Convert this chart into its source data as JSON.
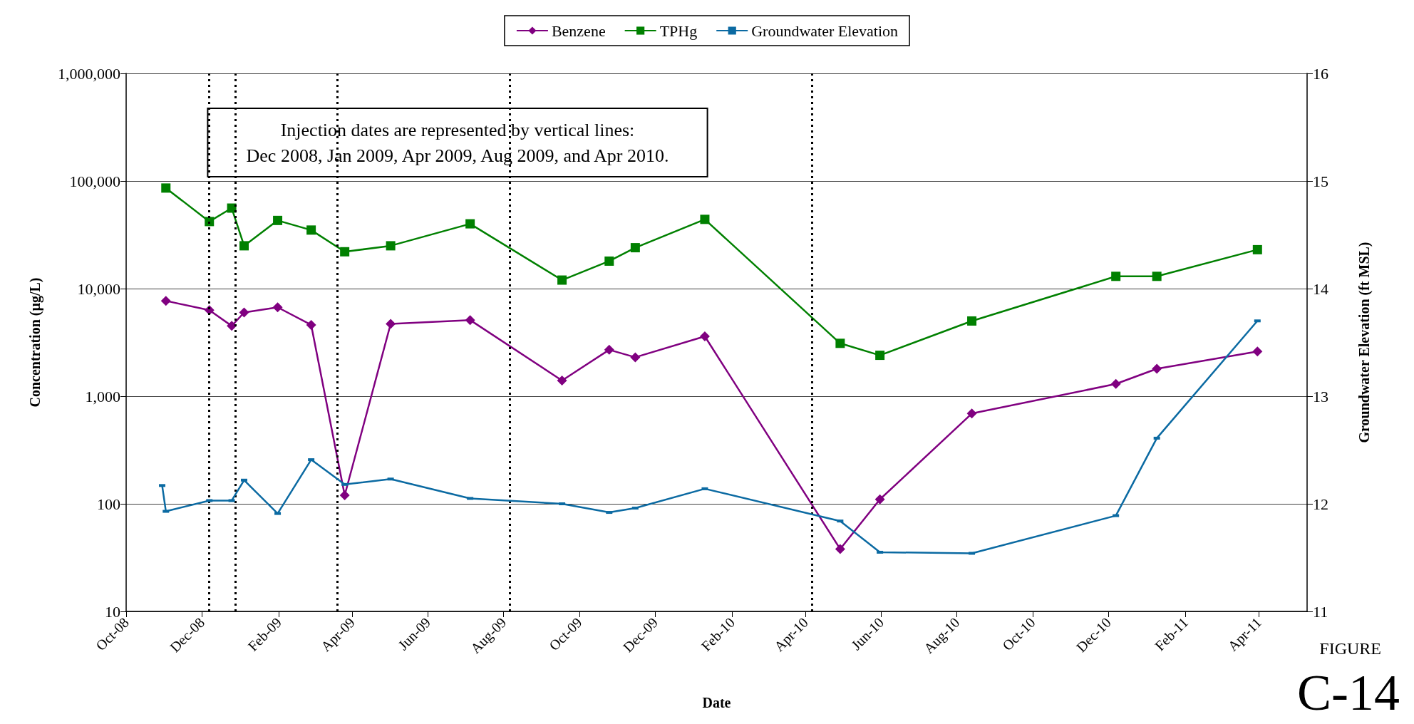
{
  "chart_data": {
    "type": "line",
    "xlabel": "Date",
    "ylabel": "Concentration (µg/L)",
    "y2label": "Groundwater Elevation (ft MSL)",
    "x": [
      "2008-11-02",
      "2008-12-07",
      "2008-12-25",
      "2009-01-04",
      "2009-01-31",
      "2009-02-27",
      "2009-03-26",
      "2009-05-02",
      "2009-07-05",
      "2009-09-17",
      "2009-10-25",
      "2009-11-15",
      "2010-01-10",
      "2010-04-29",
      "2010-05-31",
      "2010-08-13",
      "2010-12-07",
      "2011-01-09",
      "2011-03-31"
    ],
    "series": [
      {
        "name": "Benzene",
        "color": "#800080",
        "marker": "diamond",
        "values": [
          7700,
          6300,
          4500,
          6000,
          6700,
          4600,
          120,
          4700,
          5100,
          1400,
          2700,
          2300,
          3600,
          38,
          110,
          690,
          1300,
          1800,
          2600
        ]
      },
      {
        "name": "TPHg",
        "color": "#008000",
        "marker": "square",
        "values": [
          86000,
          42000,
          56000,
          25000,
          43000,
          35000,
          22000,
          25000,
          40000,
          12000,
          18000,
          24000,
          44000,
          3100,
          2400,
          5000,
          13000,
          13000,
          23000
        ]
      },
      {
        "name": "Groundwater Elevation",
        "color": "#0b6aa2",
        "marker": "square",
        "axis": "y2",
        "x": [
          "2008-10-30",
          "2008-11-02",
          "2008-12-07",
          "2008-12-25",
          "2009-01-04",
          "2009-01-31",
          "2009-02-27",
          "2009-03-26",
          "2009-05-02",
          "2009-07-05",
          "2009-09-17",
          "2009-10-25",
          "2009-11-15",
          "2010-01-10",
          "2010-04-29",
          "2010-05-31",
          "2010-08-13",
          "2010-12-07",
          "2011-01-09",
          "2011-03-31"
        ],
        "values": [
          12.17,
          11.93,
          12.03,
          12.03,
          12.22,
          11.91,
          12.41,
          12.18,
          12.23,
          12.05,
          12.0,
          11.92,
          11.96,
          12.14,
          11.84,
          11.55,
          11.54,
          11.89,
          12.61,
          13.7
        ]
      }
    ],
    "log": "y",
    "xlim": [
      "2008-10-01",
      "2011-05-10"
    ],
    "xticks": [
      {
        "value": "2008-10-01",
        "label": "Oct-08"
      },
      {
        "value": "2008-12-01",
        "label": "Dec-08"
      },
      {
        "value": "2009-02-01",
        "label": "Feb-09"
      },
      {
        "value": "2009-04-01",
        "label": "Apr-09"
      },
      {
        "value": "2009-06-01",
        "label": "Jun-09"
      },
      {
        "value": "2009-08-01",
        "label": "Aug-09"
      },
      {
        "value": "2009-10-01",
        "label": "Oct-09"
      },
      {
        "value": "2009-12-01",
        "label": "Dec-09"
      },
      {
        "value": "2010-02-01",
        "label": "Feb-10"
      },
      {
        "value": "2010-04-01",
        "label": "Apr-10"
      },
      {
        "value": "2010-06-01",
        "label": "Jun-10"
      },
      {
        "value": "2010-08-01",
        "label": "Aug-10"
      },
      {
        "value": "2010-10-01",
        "label": "Oct-10"
      },
      {
        "value": "2010-12-01",
        "label": "Dec-10"
      },
      {
        "value": "2011-02-01",
        "label": "Feb-11"
      },
      {
        "value": "2011-04-01",
        "label": "Apr-11"
      }
    ],
    "ylim": [
      10,
      1000000
    ],
    "yticks": [
      {
        "value": 10,
        "label": "10"
      },
      {
        "value": 100,
        "label": "100"
      },
      {
        "value": 1000,
        "label": "1,000"
      },
      {
        "value": 10000,
        "label": "10,000"
      },
      {
        "value": 100000,
        "label": "100,000"
      },
      {
        "value": 1000000,
        "label": "1,000,000"
      }
    ],
    "y2lim": [
      11,
      16
    ],
    "y2ticks": [
      11,
      12,
      13,
      14,
      15,
      16
    ],
    "grid": "y",
    "legend": "top",
    "ref_lines": [
      {
        "axis": "x",
        "value": "2008-12-07",
        "color": "#000000",
        "line_style": "dotted"
      },
      {
        "axis": "x",
        "value": "2008-12-28",
        "color": "#000000",
        "line_style": "dotted"
      },
      {
        "axis": "x",
        "value": "2009-03-20",
        "color": "#000000",
        "line_style": "dotted"
      },
      {
        "axis": "x",
        "value": "2009-08-06",
        "color": "#000000",
        "line_style": "dotted"
      },
      {
        "axis": "x",
        "value": "2010-04-06",
        "color": "#000000",
        "line_style": "dotted"
      }
    ],
    "annotations": [
      "Injection dates are represented by vertical lines:\nDec 2008, Jan 2009, Apr 2009, Aug 2009, and Apr 2010.",
      "FIGURE",
      "C-14"
    ]
  }
}
